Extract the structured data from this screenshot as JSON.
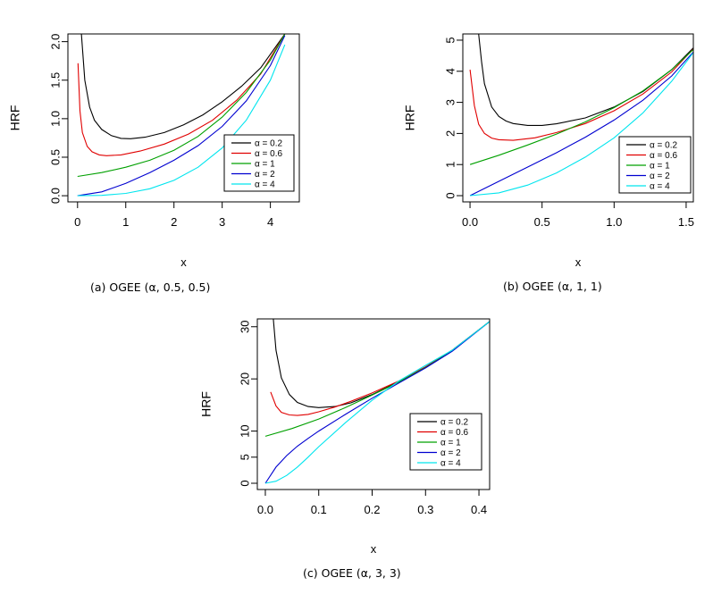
{
  "captions": [
    "(a) OGEE (α, 0.5, 0.5)",
    "(b)  OGEE (α, 1, 1)",
    "(c) OGEE (α, 3, 3)"
  ],
  "chart_data": [
    {
      "type": "line",
      "xlabel": "x",
      "ylabel": "HRF",
      "xlim": [
        -0.2,
        4.6
      ],
      "ylim": [
        -0.08,
        2.1
      ],
      "xticks": [
        0,
        1,
        2,
        3,
        4
      ],
      "xtick_labels": [
        "0",
        "1",
        "2",
        "3",
        "4"
      ],
      "yticks": [
        0,
        0.5,
        1,
        1.5,
        2
      ],
      "ytick_labels": [
        "0.0",
        "0.5",
        "1.0",
        "1.5",
        "2.0"
      ],
      "legend_position": "bottom-right",
      "series": [
        {
          "name": "α = 0.2",
          "color": "#000000",
          "x": [
            0.08,
            0.15,
            0.25,
            0.35,
            0.5,
            0.7,
            0.9,
            1.1,
            1.4,
            1.8,
            2.2,
            2.6,
            3.0,
            3.4,
            3.8,
            4.3
          ],
          "y": [
            2.1,
            1.5,
            1.15,
            0.98,
            0.86,
            0.78,
            0.745,
            0.74,
            0.76,
            0.82,
            0.92,
            1.05,
            1.22,
            1.42,
            1.66,
            2.1
          ]
        },
        {
          "name": "α = 0.6",
          "color": "#e00000",
          "x": [
            0.01,
            0.05,
            0.1,
            0.2,
            0.3,
            0.45,
            0.6,
            0.9,
            1.3,
            1.8,
            2.3,
            2.8,
            3.3,
            3.8,
            4.3
          ],
          "y": [
            1.72,
            1.1,
            0.82,
            0.64,
            0.57,
            0.53,
            0.52,
            0.53,
            0.58,
            0.67,
            0.8,
            0.98,
            1.24,
            1.58,
            2.1
          ]
        },
        {
          "name": "α = 1",
          "color": "#00a000",
          "x": [
            0,
            0.5,
            1.0,
            1.5,
            2.0,
            2.5,
            3.0,
            3.5,
            4.0,
            4.3
          ],
          "y": [
            0.25,
            0.3,
            0.37,
            0.46,
            0.59,
            0.77,
            1.02,
            1.34,
            1.76,
            2.1
          ]
        },
        {
          "name": "α = 2",
          "color": "#0000d0",
          "x": [
            0,
            0.5,
            1.0,
            1.5,
            2.0,
            2.5,
            3.0,
            3.5,
            4.0,
            4.3
          ],
          "y": [
            0,
            0.05,
            0.16,
            0.3,
            0.46,
            0.65,
            0.9,
            1.23,
            1.69,
            2.08
          ]
        },
        {
          "name": "α = 4",
          "color": "#00e5ee",
          "x": [
            0,
            0.5,
            1.0,
            1.5,
            2.0,
            2.5,
            3.0,
            3.5,
            4.0,
            4.3
          ],
          "y": [
            0,
            0.005,
            0.03,
            0.09,
            0.2,
            0.37,
            0.62,
            0.98,
            1.5,
            1.96
          ]
        }
      ]
    },
    {
      "type": "line",
      "xlabel": "x",
      "ylabel": "HRF",
      "xlim": [
        -0.05,
        1.55
      ],
      "ylim": [
        -0.2,
        5.2
      ],
      "xticks": [
        0,
        0.5,
        1,
        1.5
      ],
      "xtick_labels": [
        "0.0",
        "0.5",
        "1.0",
        "1.5"
      ],
      "yticks": [
        0,
        1,
        2,
        3,
        4,
        5
      ],
      "ytick_labels": [
        "0",
        "1",
        "2",
        "3",
        "4",
        "5"
      ],
      "legend_position": "bottom-right",
      "series": [
        {
          "name": "α = 0.2",
          "color": "#000000",
          "x": [
            0.06,
            0.08,
            0.1,
            0.15,
            0.2,
            0.25,
            0.3,
            0.4,
            0.5,
            0.6,
            0.8,
            1.0,
            1.2,
            1.4,
            1.55
          ],
          "y": [
            5.2,
            4.3,
            3.6,
            2.85,
            2.55,
            2.4,
            2.32,
            2.26,
            2.26,
            2.31,
            2.5,
            2.85,
            3.35,
            4.05,
            4.75
          ]
        },
        {
          "name": "α = 0.6",
          "color": "#e00000",
          "x": [
            0.0,
            0.03,
            0.06,
            0.1,
            0.15,
            0.2,
            0.3,
            0.45,
            0.6,
            0.8,
            1.0,
            1.2,
            1.4,
            1.55
          ],
          "y": [
            4.05,
            2.9,
            2.3,
            2.0,
            1.85,
            1.8,
            1.78,
            1.86,
            2.03,
            2.32,
            2.73,
            3.27,
            3.98,
            4.72
          ]
        },
        {
          "name": "α = 1",
          "color": "#00a000",
          "x": [
            0.0,
            0.2,
            0.4,
            0.6,
            0.8,
            1.0,
            1.2,
            1.4,
            1.55
          ],
          "y": [
            1.0,
            1.3,
            1.63,
            1.98,
            2.37,
            2.83,
            3.37,
            4.05,
            4.7
          ]
        },
        {
          "name": "α = 2",
          "color": "#0000d0",
          "x": [
            0.0,
            0.2,
            0.4,
            0.6,
            0.8,
            1.0,
            1.2,
            1.4,
            1.55
          ],
          "y": [
            0.0,
            0.46,
            0.92,
            1.38,
            1.88,
            2.43,
            3.07,
            3.85,
            4.62
          ]
        },
        {
          "name": "α = 4",
          "color": "#00e5ee",
          "x": [
            0.0,
            0.2,
            0.4,
            0.6,
            0.8,
            1.0,
            1.2,
            1.4,
            1.55
          ],
          "y": [
            0.0,
            0.09,
            0.34,
            0.73,
            1.24,
            1.86,
            2.66,
            3.68,
            4.6
          ]
        }
      ]
    },
    {
      "type": "line",
      "xlabel": "x",
      "ylabel": "HRF",
      "xlim": [
        -0.015,
        0.42
      ],
      "ylim": [
        -1.2,
        31.5
      ],
      "xticks": [
        0,
        0.1,
        0.2,
        0.3,
        0.4
      ],
      "xtick_labels": [
        "0.0",
        "0.1",
        "0.2",
        "0.3",
        "0.4"
      ],
      "yticks": [
        0,
        5,
        10,
        20,
        30
      ],
      "ytick_labels": [
        "0",
        "5",
        "10",
        "20",
        "30"
      ],
      "legend_position": "center-right",
      "series": [
        {
          "name": "α = 0.2",
          "color": "#000000",
          "x": [
            0.015,
            0.02,
            0.03,
            0.045,
            0.06,
            0.08,
            0.1,
            0.13,
            0.16,
            0.2,
            0.25,
            0.3,
            0.35,
            0.42
          ],
          "y": [
            31.5,
            25.5,
            20.2,
            17.0,
            15.5,
            14.7,
            14.5,
            14.7,
            15.4,
            17.0,
            19.5,
            22.3,
            25.5,
            31.0
          ]
        },
        {
          "name": "α = 0.6",
          "color": "#e00000",
          "x": [
            0.01,
            0.02,
            0.03,
            0.045,
            0.06,
            0.08,
            0.1,
            0.13,
            0.16,
            0.2,
            0.25,
            0.3,
            0.35,
            0.42
          ],
          "y": [
            17.5,
            14.8,
            13.6,
            13.1,
            13.0,
            13.2,
            13.7,
            14.6,
            15.7,
            17.3,
            19.6,
            22.3,
            25.5,
            31.0
          ]
        },
        {
          "name": "α = 1",
          "color": "#00a000",
          "x": [
            0.0,
            0.05,
            0.1,
            0.15,
            0.2,
            0.25,
            0.3,
            0.35,
            0.42
          ],
          "y": [
            9.0,
            10.5,
            12.3,
            14.5,
            16.9,
            19.4,
            22.2,
            25.4,
            31.0
          ]
        },
        {
          "name": "α = 2",
          "color": "#0000d0",
          "x": [
            0.0,
            0.02,
            0.04,
            0.06,
            0.08,
            0.1,
            0.15,
            0.2,
            0.25,
            0.3,
            0.35,
            0.42
          ],
          "y": [
            0.0,
            3.1,
            5.3,
            7.1,
            8.6,
            10.0,
            13.2,
            16.3,
            19.2,
            22.1,
            25.3,
            31.0
          ]
        },
        {
          "name": "α = 4",
          "color": "#00e5ee",
          "x": [
            0.0,
            0.02,
            0.04,
            0.06,
            0.08,
            0.1,
            0.15,
            0.2,
            0.25,
            0.3,
            0.35,
            0.42
          ],
          "y": [
            0.0,
            0.4,
            1.5,
            3.1,
            5.0,
            7.0,
            11.6,
            15.9,
            19.6,
            22.6,
            25.5,
            31.0
          ]
        }
      ]
    }
  ]
}
